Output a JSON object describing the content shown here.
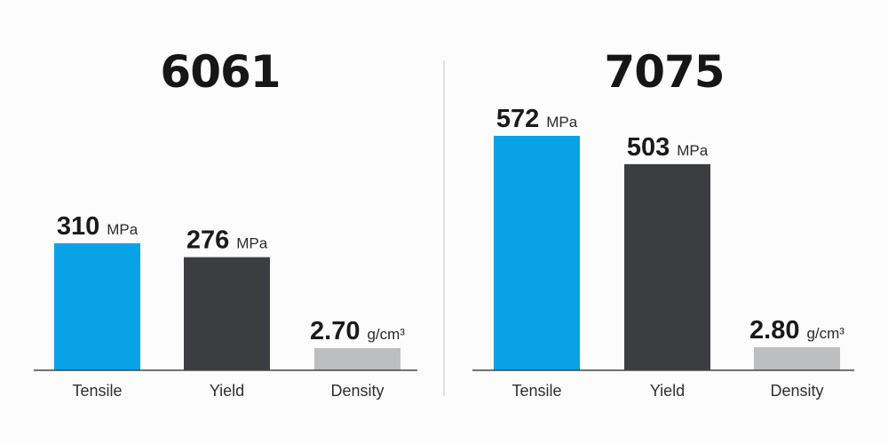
{
  "chart_data": [
    {
      "type": "bar",
      "title": "6061",
      "categories": [
        "Tensile",
        "Yield",
        "Density"
      ],
      "values": [
        310,
        276,
        2.7
      ],
      "value_labels": [
        "310",
        "276",
        "2.70"
      ],
      "units": [
        "MPa",
        "MPa",
        "g/cm³"
      ],
      "colors": [
        "#0aa2e6",
        "#3b3d40",
        "#bcbec0"
      ],
      "legend": "none",
      "grid": false
    },
    {
      "type": "bar",
      "title": "7075",
      "categories": [
        "Tensile",
        "Yield",
        "Density"
      ],
      "values": [
        572,
        503,
        2.8
      ],
      "value_labels": [
        "572",
        "503",
        "2.80"
      ],
      "units": [
        "MPa",
        "MPa",
        "g/cm³"
      ],
      "colors": [
        "#0aa2e6",
        "#3b3d40",
        "#bcbec0"
      ],
      "legend": "none",
      "grid": false
    }
  ]
}
